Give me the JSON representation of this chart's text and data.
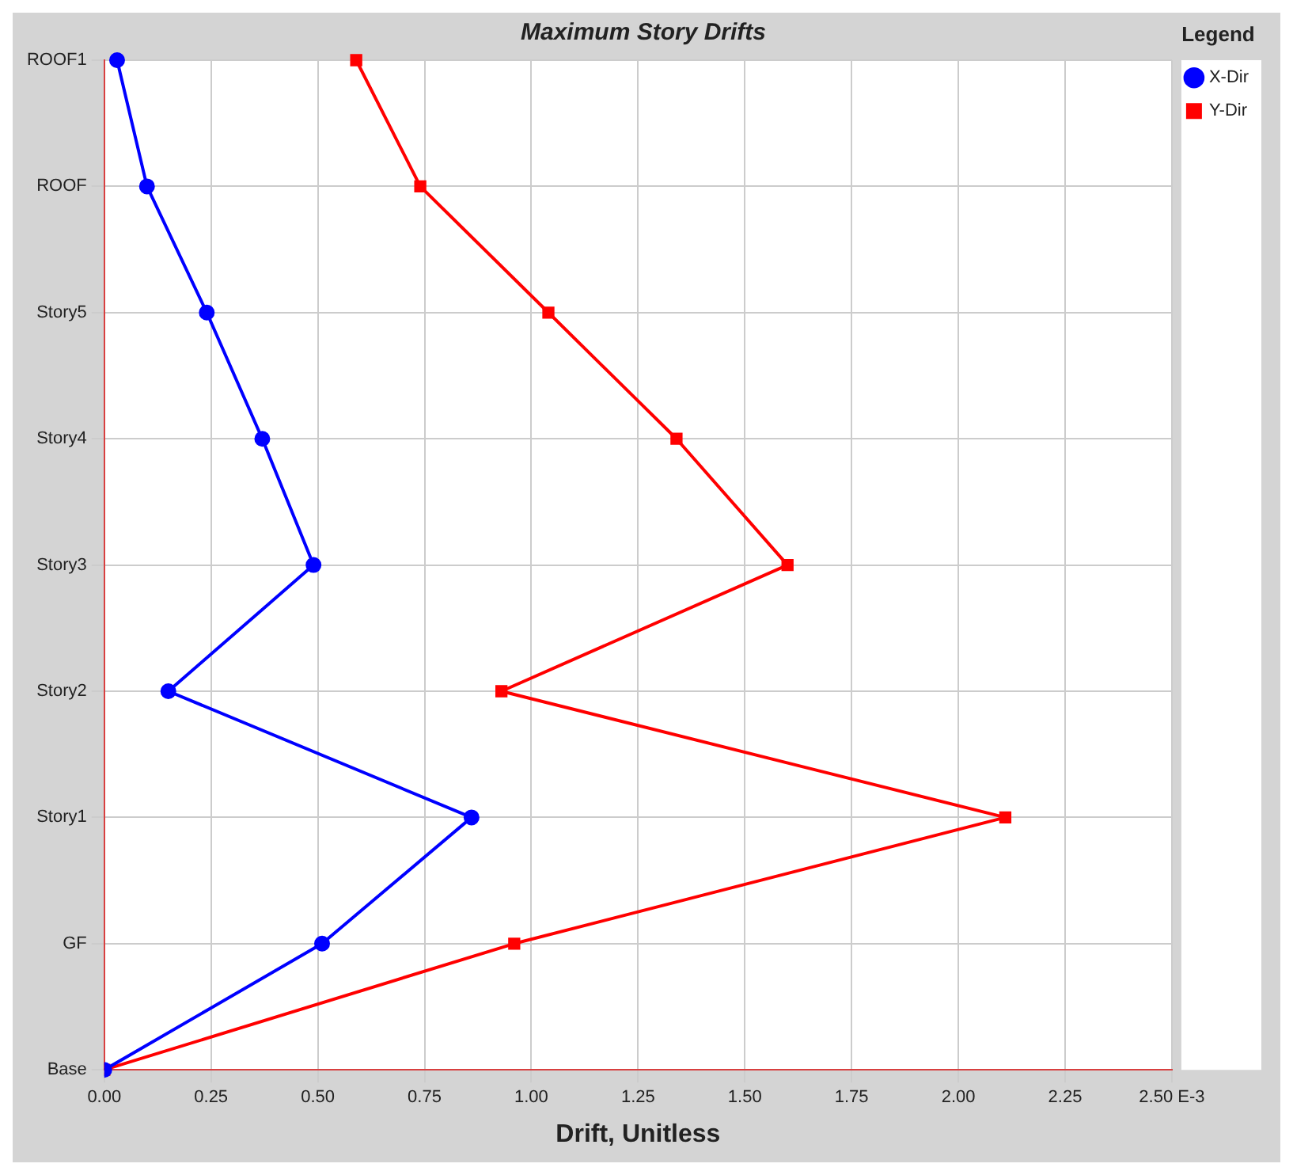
{
  "chart_data": {
    "type": "line",
    "orientation": "horizontal",
    "title": "Maximum Story Drifts",
    "xlabel": "Drift, Unitless",
    "legend_title": "Legend",
    "legend": "right",
    "grid": true,
    "xlim": [
      0,
      2.5
    ],
    "xticks": [
      {
        "value": 0,
        "label": "0.00"
      },
      {
        "value": 0.25,
        "label": "0.25"
      },
      {
        "value": 0.5,
        "label": "0.50"
      },
      {
        "value": 0.75,
        "label": "0.75"
      },
      {
        "value": 1,
        "label": "1.00"
      },
      {
        "value": 1.25,
        "label": "1.25"
      },
      {
        "value": 1.5,
        "label": "1.50"
      },
      {
        "value": 1.75,
        "label": "1.75"
      },
      {
        "value": 2,
        "label": "2.00"
      },
      {
        "value": 2.25,
        "label": "2.25"
      },
      {
        "value": 2.5,
        "label": "2.50 E-3"
      }
    ],
    "categories": [
      "ROOF1",
      "ROOF",
      "Story5",
      "Story4",
      "Story3",
      "Story2",
      "Story1",
      "GF",
      "Base"
    ],
    "series": [
      {
        "name": "X-Dir",
        "color": "#0000ff",
        "marker": "circle",
        "values": [
          0.03,
          0.1,
          0.24,
          0.37,
          0.49,
          0.15,
          0.86,
          0.51,
          0
        ]
      },
      {
        "name": "Y-Dir",
        "color": "#ff0000",
        "marker": "square",
        "values": [
          0.59,
          0.74,
          1.04,
          1.34,
          1.6,
          0.93,
          2.11,
          0.96,
          0
        ]
      }
    ]
  }
}
